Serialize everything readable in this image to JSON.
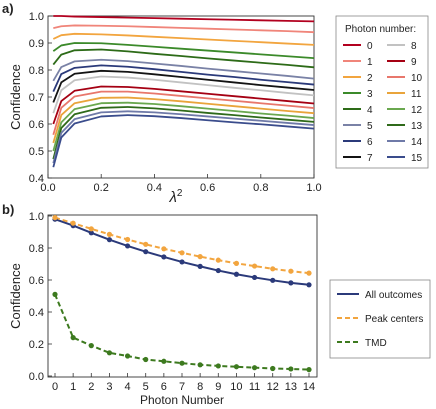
{
  "chart_data": [
    {
      "panel_label": "a)",
      "type": "line",
      "xlabel": "λ",
      "xlabel_superscript": "2",
      "ylabel": "Confidence",
      "xlim": [
        0,
        1
      ],
      "ylim": [
        0.4,
        1.0
      ],
      "x_ticks": [
        "0.0",
        "0.2",
        "0.4",
        "0.6",
        "0.8",
        "1.0"
      ],
      "y_ticks": [
        "0.4",
        "0.5",
        "0.6",
        "0.7",
        "0.8",
        "0.9",
        "1.0"
      ],
      "legend": {
        "title": "Photon number:",
        "placement": "right"
      },
      "grid": false,
      "x": [
        0.02,
        0.05,
        0.1,
        0.2,
        0.3,
        0.4,
        0.5,
        0.6,
        0.7,
        0.8,
        0.9,
        1.0
      ],
      "series": [
        {
          "name": "0",
          "color": "#b2001f",
          "values": [
            1.0,
            1.0,
            0.998,
            0.996,
            0.994,
            0.992,
            0.99,
            0.988,
            0.986,
            0.984,
            0.982,
            0.98
          ]
        },
        {
          "name": "1",
          "color": "#f0857a",
          "values": [
            0.955,
            0.962,
            0.965,
            0.964,
            0.962,
            0.959,
            0.956,
            0.953,
            0.95,
            0.947,
            0.944,
            0.94
          ]
        },
        {
          "name": "2",
          "color": "#f2a53f",
          "values": [
            0.915,
            0.929,
            0.934,
            0.932,
            0.928,
            0.923,
            0.918,
            0.913,
            0.908,
            0.903,
            0.898,
            0.893
          ]
        },
        {
          "name": "3",
          "color": "#3b8a2a",
          "values": [
            0.87,
            0.891,
            0.9,
            0.899,
            0.893,
            0.886,
            0.879,
            0.872,
            0.865,
            0.858,
            0.851,
            0.844
          ]
        },
        {
          "name": "4",
          "color": "#2d6b18",
          "values": [
            0.82,
            0.857,
            0.873,
            0.876,
            0.869,
            0.86,
            0.852,
            0.843,
            0.835,
            0.827,
            0.819,
            0.81
          ]
        },
        {
          "name": "5",
          "color": "#7a82a6",
          "values": [
            0.76,
            0.811,
            0.832,
            0.838,
            0.833,
            0.824,
            0.815,
            0.805,
            0.796,
            0.787,
            0.778,
            0.768
          ]
        },
        {
          "name": "6",
          "color": "#2b3a7a",
          "values": [
            0.72,
            0.785,
            0.808,
            0.817,
            0.812,
            0.803,
            0.793,
            0.783,
            0.774,
            0.764,
            0.755,
            0.746
          ]
        },
        {
          "name": "7",
          "color": "#141414",
          "values": [
            0.68,
            0.754,
            0.786,
            0.797,
            0.793,
            0.784,
            0.774,
            0.764,
            0.754,
            0.744,
            0.735,
            0.726
          ]
        },
        {
          "name": "8",
          "color": "#c2c2c2",
          "values": [
            0.64,
            0.725,
            0.762,
            0.776,
            0.772,
            0.764,
            0.754,
            0.744,
            0.734,
            0.725,
            0.715,
            0.706
          ]
        },
        {
          "name": "9",
          "color": "#a50013",
          "values": [
            0.6,
            0.685,
            0.723,
            0.739,
            0.737,
            0.73,
            0.721,
            0.712,
            0.703,
            0.694,
            0.685,
            0.676
          ]
        },
        {
          "name": "10",
          "color": "#e8776c",
          "values": [
            0.56,
            0.66,
            0.702,
            0.72,
            0.72,
            0.713,
            0.704,
            0.695,
            0.686,
            0.677,
            0.668,
            0.659
          ]
        },
        {
          "name": "11",
          "color": "#e9a43b",
          "values": [
            0.53,
            0.633,
            0.677,
            0.697,
            0.698,
            0.692,
            0.684,
            0.675,
            0.666,
            0.657,
            0.648,
            0.64
          ]
        },
        {
          "name": "12",
          "color": "#6aa84f",
          "values": [
            0.5,
            0.606,
            0.655,
            0.677,
            0.679,
            0.674,
            0.666,
            0.657,
            0.648,
            0.639,
            0.631,
            0.622
          ]
        },
        {
          "name": "13",
          "color": "#2f6a1a",
          "values": [
            0.47,
            0.585,
            0.636,
            0.66,
            0.663,
            0.658,
            0.65,
            0.641,
            0.633,
            0.624,
            0.616,
            0.608
          ]
        },
        {
          "name": "14",
          "color": "#6f7aa8",
          "values": [
            0.455,
            0.567,
            0.618,
            0.643,
            0.647,
            0.643,
            0.636,
            0.628,
            0.62,
            0.612,
            0.604,
            0.596
          ]
        },
        {
          "name": "15",
          "color": "#3a4c8c",
          "values": [
            0.44,
            0.55,
            0.602,
            0.628,
            0.633,
            0.629,
            0.622,
            0.614,
            0.606,
            0.599,
            0.591,
            0.583
          ]
        }
      ]
    },
    {
      "panel_label": "b)",
      "type": "line",
      "xlabel": "Photon Number",
      "ylabel": "Confidence",
      "xlim": [
        0,
        14
      ],
      "ylim": [
        0.0,
        1.0
      ],
      "x_ticks": [
        "0",
        "1",
        "2",
        "3",
        "4",
        "5",
        "6",
        "7",
        "8",
        "9",
        "10",
        "11",
        "12",
        "13",
        "14"
      ],
      "y_ticks": [
        "0.0",
        "0.2",
        "0.4",
        "0.6",
        "0.8",
        "1.0"
      ],
      "legend": {
        "placement": "right"
      },
      "grid": false,
      "x": [
        0,
        1,
        2,
        3,
        4,
        5,
        6,
        7,
        8,
        9,
        10,
        11,
        12,
        13,
        14
      ],
      "series": [
        {
          "name": "All outcomes",
          "color": "#2b3a7a",
          "dash": "solid",
          "values": [
            0.98,
            0.94,
            0.895,
            0.852,
            0.813,
            0.777,
            0.744,
            0.713,
            0.685,
            0.659,
            0.636,
            0.616,
            0.598,
            0.582,
            0.57
          ]
        },
        {
          "name": "Peak centers",
          "color": "#f2a53f",
          "dash": "dashed",
          "values": [
            0.99,
            0.955,
            0.92,
            0.885,
            0.853,
            0.823,
            0.795,
            0.77,
            0.746,
            0.724,
            0.704,
            0.687,
            0.67,
            0.655,
            0.643
          ]
        },
        {
          "name": "TMD",
          "color": "#3d7a1f",
          "dash": "dashed",
          "values": [
            0.51,
            0.24,
            0.19,
            0.145,
            0.125,
            0.103,
            0.092,
            0.08,
            0.07,
            0.063,
            0.058,
            0.052,
            0.047,
            0.044,
            0.04
          ]
        }
      ]
    }
  ]
}
